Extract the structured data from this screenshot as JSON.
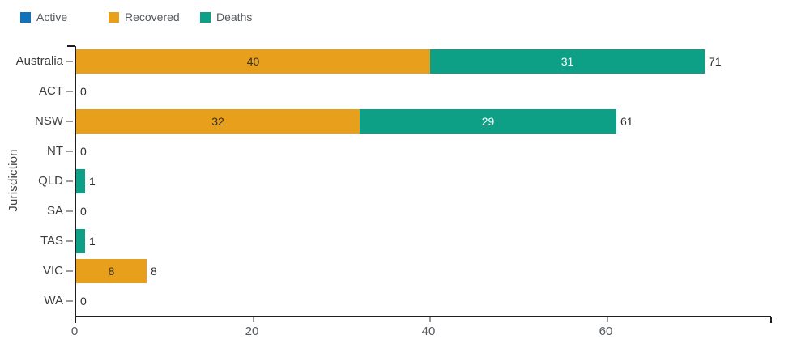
{
  "chart_data": {
    "type": "bar",
    "orientation": "horizontal",
    "stacked": true,
    "title": "",
    "xlabel": "",
    "ylabel": "Jurisdiction",
    "categories": [
      "Australia",
      "ACT",
      "NSW",
      "NT",
      "QLD",
      "SA",
      "TAS",
      "VIC",
      "WA"
    ],
    "series": [
      {
        "name": "Active",
        "color": "#1172ba",
        "label_color": "#ffffff",
        "values": [
          0,
          0,
          0,
          0,
          0,
          0,
          0,
          0,
          0
        ]
      },
      {
        "name": "Recovered",
        "color": "#e8a01c",
        "label_color": "#3a3020",
        "values": [
          40,
          0,
          32,
          0,
          0,
          0,
          0,
          8,
          0
        ]
      },
      {
        "name": "Deaths",
        "color": "#0ea086",
        "label_color": "#ffffff",
        "values": [
          31,
          0,
          29,
          0,
          1,
          0,
          1,
          0,
          0
        ]
      }
    ],
    "totals": [
      71,
      0,
      61,
      0,
      1,
      0,
      1,
      8,
      0
    ],
    "xticks": [
      0,
      20,
      40,
      60
    ],
    "xlim": [
      0,
      78.5
    ],
    "legend_position": "top",
    "grid": false
  }
}
